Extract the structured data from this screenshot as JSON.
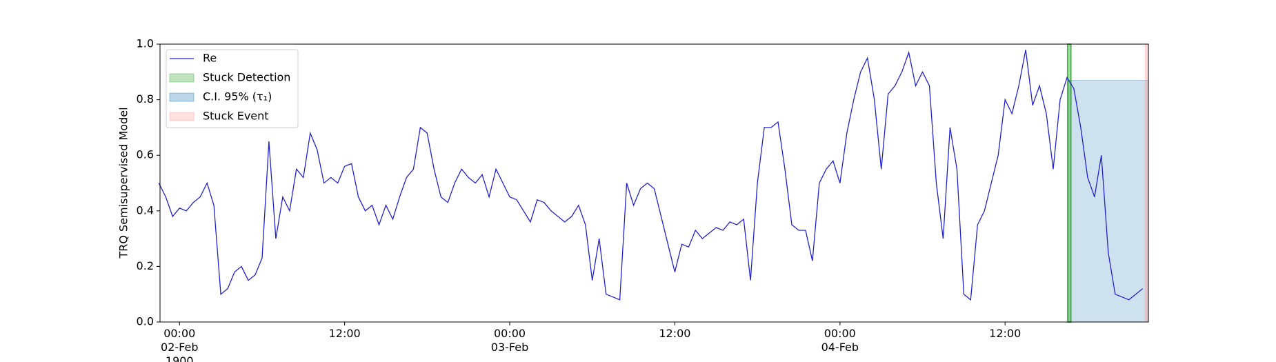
{
  "chart_data": {
    "type": "line",
    "ylabel": "TRQ Semisupervised Model",
    "x": [
      "1900-02-01 22:30",
      "1900-02-01 23:00",
      "1900-02-01 23:30",
      "1900-02-02 00:00",
      "1900-02-02 00:30",
      "1900-02-02 01:00",
      "1900-02-02 01:30",
      "1900-02-02 02:00",
      "1900-02-02 02:30",
      "1900-02-02 03:00",
      "1900-02-02 03:30",
      "1900-02-02 04:00",
      "1900-02-02 04:30",
      "1900-02-02 05:00",
      "1900-02-02 05:30",
      "1900-02-02 06:00",
      "1900-02-02 06:30",
      "1900-02-02 07:00",
      "1900-02-02 07:30",
      "1900-02-02 08:00",
      "1900-02-02 08:30",
      "1900-02-02 09:00",
      "1900-02-02 09:30",
      "1900-02-02 10:00",
      "1900-02-02 10:30",
      "1900-02-02 11:00",
      "1900-02-02 11:30",
      "1900-02-02 12:00",
      "1900-02-02 12:30",
      "1900-02-02 13:00",
      "1900-02-02 13:30",
      "1900-02-02 14:00",
      "1900-02-02 14:30",
      "1900-02-02 15:00",
      "1900-02-02 15:30",
      "1900-02-02 16:00",
      "1900-02-02 16:30",
      "1900-02-02 17:00",
      "1900-02-02 17:30",
      "1900-02-02 18:00",
      "1900-02-02 18:30",
      "1900-02-02 19:00",
      "1900-02-02 19:30",
      "1900-02-02 20:00",
      "1900-02-02 20:30",
      "1900-02-02 21:00",
      "1900-02-02 21:30",
      "1900-02-02 22:00",
      "1900-02-02 22:30",
      "1900-02-02 23:00",
      "1900-02-02 23:30",
      "1900-02-03 00:00",
      "1900-02-03 00:30",
      "1900-02-03 01:00",
      "1900-02-03 01:30",
      "1900-02-03 02:00",
      "1900-02-03 02:30",
      "1900-02-03 03:00",
      "1900-02-03 03:30",
      "1900-02-03 04:00",
      "1900-02-03 04:30",
      "1900-02-03 05:00",
      "1900-02-03 05:30",
      "1900-02-03 06:00",
      "1900-02-03 06:30",
      "1900-02-03 07:00",
      "1900-02-03 07:30",
      "1900-02-03 08:00",
      "1900-02-03 08:30",
      "1900-02-03 09:00",
      "1900-02-03 09:30",
      "1900-02-03 10:00",
      "1900-02-03 10:30",
      "1900-02-03 11:00",
      "1900-02-03 11:30",
      "1900-02-03 12:00",
      "1900-02-03 12:30",
      "1900-02-03 13:00",
      "1900-02-03 13:30",
      "1900-02-03 14:00",
      "1900-02-03 14:30",
      "1900-02-03 15:00",
      "1900-02-03 15:30",
      "1900-02-03 16:00",
      "1900-02-03 16:30",
      "1900-02-03 17:00",
      "1900-02-03 17:30",
      "1900-02-03 18:00",
      "1900-02-03 18:30",
      "1900-02-03 19:00",
      "1900-02-03 19:30",
      "1900-02-03 20:00",
      "1900-02-03 20:30",
      "1900-02-03 21:00",
      "1900-02-03 21:30",
      "1900-02-03 22:00",
      "1900-02-03 22:30",
      "1900-02-03 23:00",
      "1900-02-03 23:30",
      "1900-02-04 00:00",
      "1900-02-04 00:30",
      "1900-02-04 01:00",
      "1900-02-04 01:30",
      "1900-02-04 02:00",
      "1900-02-04 02:30",
      "1900-02-04 03:00",
      "1900-02-04 03:30",
      "1900-02-04 04:00",
      "1900-02-04 04:30",
      "1900-02-04 05:00",
      "1900-02-04 05:30",
      "1900-02-04 06:00",
      "1900-02-04 06:30",
      "1900-02-04 07:00",
      "1900-02-04 07:30",
      "1900-02-04 08:00",
      "1900-02-04 08:30",
      "1900-02-04 09:00",
      "1900-02-04 09:30",
      "1900-02-04 10:00",
      "1900-02-04 10:30",
      "1900-02-04 11:00",
      "1900-02-04 11:30",
      "1900-02-04 12:00",
      "1900-02-04 12:30",
      "1900-02-04 13:00",
      "1900-02-04 13:30",
      "1900-02-04 14:00",
      "1900-02-04 14:30",
      "1900-02-04 15:00",
      "1900-02-04 15:30",
      "1900-02-04 16:00",
      "1900-02-04 16:30",
      "1900-02-04 17:00",
      "1900-02-04 17:30",
      "1900-02-04 18:00",
      "1900-02-04 18:30",
      "1900-02-04 19:00",
      "1900-02-04 19:30",
      "1900-02-04 20:00",
      "1900-02-04 20:30",
      "1900-02-04 21:00",
      "1900-02-04 21:30",
      "1900-02-04 22:00"
    ],
    "series": [
      {
        "name": "Re",
        "color": "#2020d0",
        "values": [
          0.5,
          0.45,
          0.38,
          0.41,
          0.4,
          0.43,
          0.45,
          0.5,
          0.42,
          0.1,
          0.12,
          0.18,
          0.2,
          0.15,
          0.17,
          0.23,
          0.65,
          0.3,
          0.45,
          0.4,
          0.55,
          0.52,
          0.68,
          0.62,
          0.5,
          0.52,
          0.5,
          0.56,
          0.57,
          0.45,
          0.4,
          0.42,
          0.35,
          0.42,
          0.37,
          0.45,
          0.52,
          0.55,
          0.7,
          0.68,
          0.55,
          0.45,
          0.43,
          0.5,
          0.55,
          0.52,
          0.5,
          0.53,
          0.45,
          0.55,
          0.5,
          0.45,
          0.44,
          0.4,
          0.36,
          0.44,
          0.43,
          0.4,
          0.38,
          0.36,
          0.38,
          0.42,
          0.35,
          0.15,
          0.3,
          0.1,
          0.09,
          0.08,
          0.5,
          0.42,
          0.48,
          0.5,
          0.48,
          0.38,
          0.28,
          0.18,
          0.28,
          0.27,
          0.33,
          0.3,
          0.32,
          0.34,
          0.33,
          0.36,
          0.35,
          0.37,
          0.15,
          0.5,
          0.7,
          0.7,
          0.72,
          0.55,
          0.35,
          0.33,
          0.33,
          0.22,
          0.5,
          0.55,
          0.58,
          0.5,
          0.68,
          0.8,
          0.9,
          0.95,
          0.8,
          0.55,
          0.82,
          0.85,
          0.9,
          0.97,
          0.85,
          0.9,
          0.85,
          0.5,
          0.3,
          0.7,
          0.55,
          0.1,
          0.08,
          0.35,
          0.4,
          0.5,
          0.6,
          0.8,
          0.75,
          0.85,
          0.98,
          0.78,
          0.85,
          0.75,
          0.55,
          0.8,
          0.88,
          0.84,
          0.7,
          0.52,
          0.45,
          0.6,
          0.25,
          0.1,
          0.09,
          0.08,
          0.1,
          0.12
        ]
      }
    ],
    "regions": [
      {
        "name": "Stuck Detection",
        "color": "#2ca02c",
        "x": [
          "1900-02-04 16:33",
          "1900-02-04 16:47"
        ]
      },
      {
        "name": "C.I. 95% (τ₁)",
        "color": "#1f77b4",
        "x": [
          "1900-02-04 16:37",
          "1900-02-04 22:25"
        ],
        "y": [
          0,
          0.87
        ]
      },
      {
        "name": "Stuck Event",
        "color": "#ff9999",
        "x": [
          "1900-02-04 22:11",
          "1900-02-04 22:25"
        ]
      }
    ],
    "xlim": [
      "1900-02-01 22:35",
      "1900-02-04 22:25"
    ],
    "xticks": [
      {
        "value": "1900-02-02 00:00",
        "label": "00:00\n02-Feb\n1900"
      },
      {
        "value": "1900-02-02 12:00",
        "label": "12:00"
      },
      {
        "value": "1900-02-03 00:00",
        "label": "00:00\n03-Feb"
      },
      {
        "value": "1900-02-03 12:00",
        "label": "12:00"
      },
      {
        "value": "1900-02-04 00:00",
        "label": "00:00\n04-Feb"
      },
      {
        "value": "1900-02-04 12:00",
        "label": "12:00"
      }
    ],
    "ylim": [
      0,
      1
    ],
    "yticks": [
      {
        "value": 0,
        "label": "0.0"
      },
      0.2,
      0.4,
      0.6,
      0.8,
      {
        "value": 1,
        "label": "1.0"
      }
    ],
    "legend": "upper left"
  }
}
